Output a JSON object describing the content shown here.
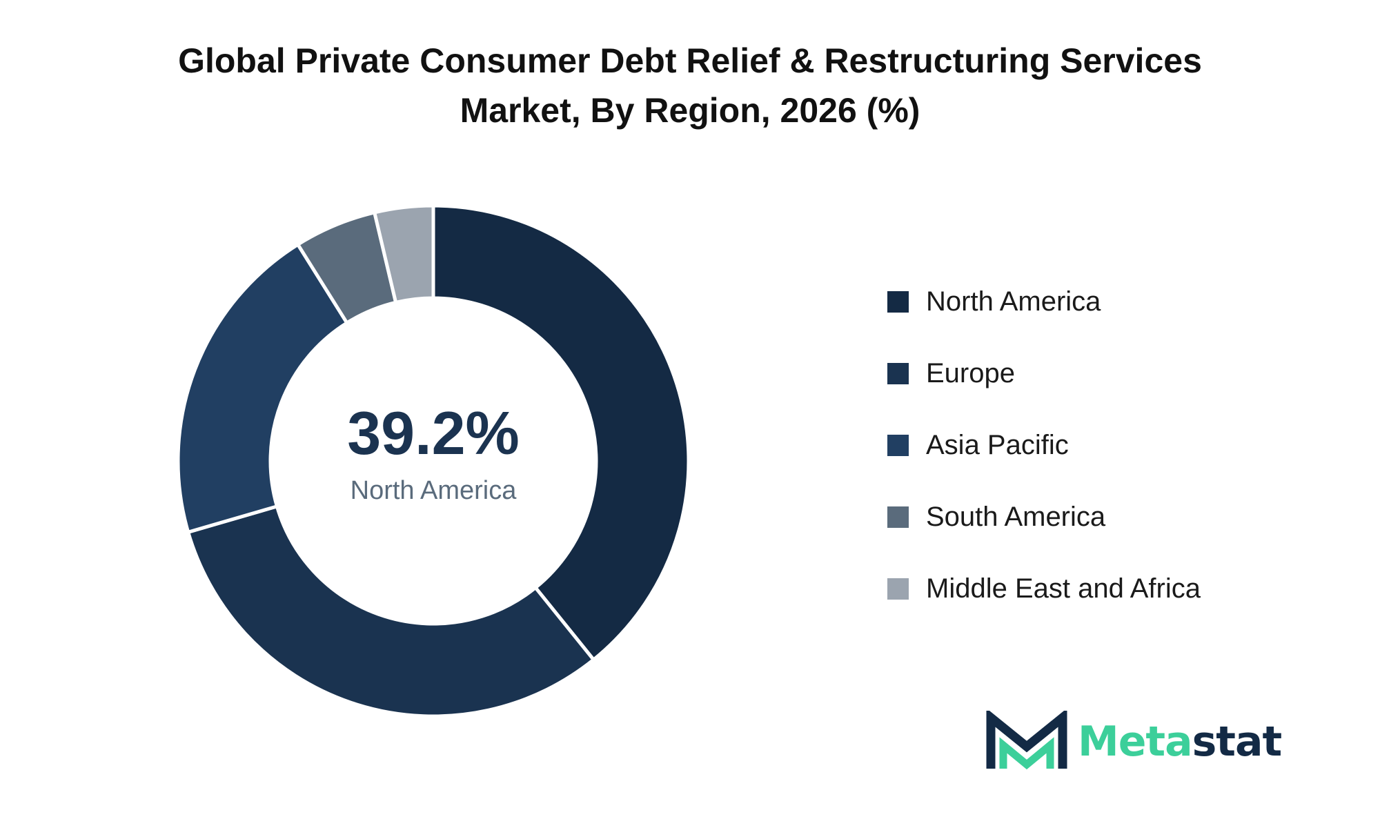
{
  "chart_data": {
    "type": "pie",
    "title": "Global Private Consumer Debt Relief & Restructuring Services Market, By Region, 2026 (%)",
    "title_lines": [
      "Global Private Consumer Debt Relief & Restructuring Services",
      "Market, By Region, 2026 (%)"
    ],
    "donut": true,
    "categories": [
      "North America",
      "Europe",
      "Asia Pacific",
      "South America",
      "Middle East and Africa"
    ],
    "values": [
      39.2,
      31.3,
      20.6,
      5.2,
      3.7
    ],
    "colors": [
      "#142a44",
      "#1a3350",
      "#213f62",
      "#5a6b7c",
      "#9ba4af"
    ],
    "center_value": "39.2%",
    "center_label": "North America",
    "legend_position": "right"
  },
  "colors": {
    "title": "#111111",
    "center_value": "#1b3350",
    "center_label": "#5a6b7c",
    "logo_dark": "#132a45",
    "logo_accent": "#3ccf9a"
  },
  "logo": {
    "text_part1": "Meta",
    "text_part2": "stat"
  }
}
